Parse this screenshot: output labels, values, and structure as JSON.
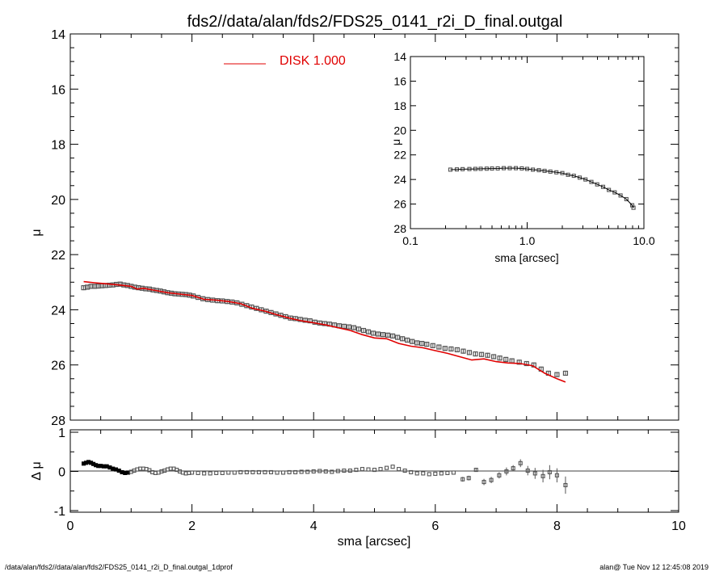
{
  "title": "fds2//data/alan/fds2/FDS25_0141_r2i_D_final.outgal",
  "footer": {
    "left": "/data/alan/fds2//data/alan/fds2/FDS25_0141_r2i_D_final.outgal_1dprof",
    "right": "alan@  Tue Nov 12 12:45:08 2019"
  },
  "colors": {
    "model": "#e00000",
    "data": "#555555",
    "axis": "#000000"
  },
  "chart_data": [
    {
      "id": "main",
      "type": "scatter",
      "ylabel": "μ",
      "xlim": [
        0,
        10
      ],
      "ylim": [
        28,
        14
      ],
      "yticks": [
        "14",
        "16",
        "18",
        "20",
        "22",
        "24",
        "26",
        "28"
      ],
      "legend": {
        "label": "DISK  1.000",
        "position": "top-center"
      },
      "series": [
        {
          "name": "data",
          "x": [
            0.22,
            0.28,
            0.34,
            0.4,
            0.46,
            0.52,
            0.58,
            0.64,
            0.7,
            0.76,
            0.82,
            0.88,
            0.94,
            1.0,
            1.06,
            1.12,
            1.18,
            1.24,
            1.3,
            1.36,
            1.42,
            1.48,
            1.54,
            1.6,
            1.66,
            1.72,
            1.78,
            1.84,
            1.9,
            1.96,
            2.02,
            2.1,
            2.18,
            2.26,
            2.34,
            2.42,
            2.5,
            2.58,
            2.66,
            2.74,
            2.82,
            2.9,
            2.98,
            3.06,
            3.14,
            3.22,
            3.3,
            3.38,
            3.46,
            3.54,
            3.62,
            3.7,
            3.78,
            3.86,
            3.94,
            4.02,
            4.1,
            4.18,
            4.26,
            4.34,
            4.42,
            4.5,
            4.58,
            4.66,
            4.74,
            4.82,
            4.9,
            4.98,
            5.06,
            5.14,
            5.22,
            5.3,
            5.38,
            5.46,
            5.54,
            5.62,
            5.7,
            5.78,
            5.86,
            5.96,
            6.06,
            6.16,
            6.26,
            6.36,
            6.46,
            6.56,
            6.66,
            6.76,
            6.86,
            6.96,
            7.06,
            7.16,
            7.26,
            7.38,
            7.5,
            7.62,
            7.74,
            7.86,
            8.0,
            8.14
          ],
          "y": [
            23.2,
            23.18,
            23.15,
            23.15,
            23.14,
            23.13,
            23.12,
            23.11,
            23.1,
            23.08,
            23.07,
            23.1,
            23.12,
            23.15,
            23.18,
            23.2,
            23.22,
            23.24,
            23.25,
            23.28,
            23.3,
            23.32,
            23.35,
            23.38,
            23.4,
            23.42,
            23.43,
            23.44,
            23.45,
            23.47,
            23.5,
            23.55,
            23.6,
            23.63,
            23.65,
            23.67,
            23.68,
            23.7,
            23.72,
            23.75,
            23.8,
            23.85,
            23.9,
            23.95,
            24.0,
            24.05,
            24.1,
            24.15,
            24.2,
            24.25,
            24.3,
            24.32,
            24.35,
            24.38,
            24.4,
            24.45,
            24.48,
            24.5,
            24.52,
            24.55,
            24.58,
            24.6,
            24.62,
            24.65,
            24.7,
            24.75,
            24.8,
            24.85,
            24.88,
            24.9,
            24.92,
            24.95,
            25.0,
            25.05,
            25.1,
            25.15,
            25.2,
            25.22,
            25.25,
            25.3,
            25.35,
            25.4,
            25.42,
            25.45,
            25.5,
            25.55,
            25.6,
            25.62,
            25.65,
            25.7,
            25.75,
            25.8,
            25.85,
            25.9,
            25.95,
            26.0,
            26.15,
            26.3,
            26.35,
            26.3
          ],
          "yerr": [
            0.03,
            0.03,
            0.03,
            0.03,
            0.03,
            0.03,
            0.03,
            0.03,
            0.03,
            0.03,
            0.03,
            0.03,
            0.03,
            0.03,
            0.03,
            0.03,
            0.03,
            0.03,
            0.03,
            0.03,
            0.03,
            0.03,
            0.03,
            0.03,
            0.03,
            0.03,
            0.03,
            0.03,
            0.03,
            0.03,
            0.03,
            0.03,
            0.03,
            0.03,
            0.03,
            0.03,
            0.03,
            0.03,
            0.03,
            0.03,
            0.03,
            0.03,
            0.03,
            0.03,
            0.03,
            0.03,
            0.03,
            0.03,
            0.03,
            0.03,
            0.03,
            0.03,
            0.03,
            0.03,
            0.03,
            0.03,
            0.03,
            0.03,
            0.03,
            0.03,
            0.03,
            0.03,
            0.03,
            0.03,
            0.03,
            0.03,
            0.03,
            0.03,
            0.03,
            0.03,
            0.03,
            0.03,
            0.03,
            0.03,
            0.03,
            0.03,
            0.03,
            0.03,
            0.03,
            0.03,
            0.03,
            0.03,
            0.03,
            0.03,
            0.03,
            0.03,
            0.03,
            0.03,
            0.03,
            0.03,
            0.03,
            0.03,
            0.03,
            0.03,
            0.03,
            0.03,
            0.03,
            0.03,
            0.03,
            0.03
          ]
        },
        {
          "name": "DISK  1.000",
          "x": [
            0.22,
            0.4,
            0.6,
            0.8,
            1.0,
            1.1,
            1.2,
            1.4,
            1.6,
            1.8,
            2.0,
            2.2,
            2.4,
            2.6,
            2.8,
            3.0,
            3.2,
            3.4,
            3.6,
            3.8,
            4.0,
            4.2,
            4.4,
            4.6,
            4.8,
            5.0,
            5.2,
            5.4,
            5.6,
            5.8,
            6.0,
            6.2,
            6.4,
            6.6,
            6.8,
            7.0,
            7.2,
            7.4,
            7.6,
            7.8,
            8.0,
            8.14
          ],
          "y": [
            22.98,
            23.02,
            23.06,
            23.1,
            23.15,
            23.25,
            23.22,
            23.3,
            23.38,
            23.43,
            23.48,
            23.62,
            23.65,
            23.7,
            23.78,
            23.95,
            24.05,
            24.18,
            24.3,
            24.4,
            24.47,
            24.55,
            24.65,
            24.75,
            24.9,
            25.02,
            25.05,
            25.22,
            25.32,
            25.38,
            25.48,
            25.58,
            25.7,
            25.82,
            25.78,
            25.88,
            25.93,
            25.95,
            26.03,
            26.3,
            26.5,
            26.62
          ]
        }
      ]
    },
    {
      "id": "inset",
      "type": "scatter",
      "xlabel": "sma [arcsec]",
      "ylabel": "μ",
      "xscale": "log",
      "xlim": [
        0.1,
        10
      ],
      "xticks": [
        "0.1",
        "1.0",
        "10.0"
      ],
      "ylim": [
        28,
        14
      ],
      "yticks": [
        "14",
        "16",
        "18",
        "20",
        "22",
        "24",
        "26",
        "28"
      ],
      "series": [
        {
          "name": "data",
          "x": [
            0.22,
            0.25,
            0.28,
            0.32,
            0.36,
            0.4,
            0.45,
            0.5,
            0.56,
            0.63,
            0.71,
            0.8,
            0.9,
            1.0,
            1.12,
            1.26,
            1.41,
            1.58,
            1.78,
            2.0,
            2.24,
            2.51,
            2.82,
            3.16,
            3.55,
            3.98,
            4.47,
            5.01,
            5.62,
            6.31,
            7.08,
            7.94,
            8.14
          ],
          "y": [
            23.2,
            23.18,
            23.16,
            23.15,
            23.14,
            23.13,
            23.12,
            23.11,
            23.1,
            23.08,
            23.08,
            23.08,
            23.1,
            23.14,
            23.2,
            23.24,
            23.3,
            23.36,
            23.42,
            23.48,
            23.62,
            23.7,
            23.85,
            24.0,
            24.2,
            24.4,
            24.6,
            24.85,
            25.05,
            25.3,
            25.6,
            26.1,
            26.3
          ]
        }
      ]
    },
    {
      "id": "residual",
      "type": "scatter",
      "xlabel": "sma [arcsec]",
      "ylabel": "Δ μ",
      "xlim": [
        0,
        10
      ],
      "xticks": [
        "0",
        "2",
        "4",
        "6",
        "8",
        "10"
      ],
      "ylim": [
        -1,
        1
      ],
      "yticks": [
        "1",
        "0",
        "-1"
      ],
      "series": [
        {
          "name": "residual",
          "x": [
            0.22,
            0.26,
            0.3,
            0.34,
            0.38,
            0.42,
            0.46,
            0.5,
            0.55,
            0.6,
            0.65,
            0.7,
            0.75,
            0.8,
            0.85,
            0.9,
            0.95,
            1.0,
            1.05,
            1.1,
            1.15,
            1.2,
            1.25,
            1.3,
            1.35,
            1.4,
            1.45,
            1.5,
            1.55,
            1.6,
            1.65,
            1.7,
            1.75,
            1.8,
            1.85,
            1.9,
            1.95,
            2.0,
            2.1,
            2.2,
            2.3,
            2.4,
            2.5,
            2.6,
            2.7,
            2.8,
            2.9,
            3.0,
            3.1,
            3.2,
            3.3,
            3.4,
            3.5,
            3.6,
            3.7,
            3.8,
            3.9,
            4.0,
            4.1,
            4.2,
            4.3,
            4.4,
            4.5,
            4.6,
            4.7,
            4.8,
            4.9,
            5.0,
            5.1,
            5.2,
            5.3,
            5.4,
            5.5,
            5.6,
            5.7,
            5.8,
            5.9,
            6.0,
            6.1,
            6.2,
            6.3,
            6.45,
            6.55,
            6.67,
            6.8,
            6.92,
            7.05,
            7.17,
            7.28,
            7.4,
            7.52,
            7.64,
            7.77,
            7.88,
            8.0,
            8.14
          ],
          "y": [
            0.2,
            0.22,
            0.24,
            0.22,
            0.19,
            0.16,
            0.14,
            0.14,
            0.13,
            0.13,
            0.1,
            0.07,
            0.05,
            0.02,
            -0.02,
            -0.04,
            -0.03,
            -0.01,
            0.02,
            0.05,
            0.07,
            0.07,
            0.06,
            0.03,
            -0.02,
            -0.04,
            -0.03,
            0.0,
            0.02,
            0.05,
            0.07,
            0.07,
            0.04,
            0.0,
            -0.03,
            -0.05,
            -0.04,
            -0.03,
            -0.04,
            -0.05,
            -0.05,
            -0.04,
            -0.04,
            -0.03,
            -0.03,
            -0.02,
            -0.02,
            -0.02,
            -0.02,
            -0.02,
            -0.02,
            -0.03,
            -0.03,
            -0.02,
            -0.02,
            -0.01,
            -0.01,
            0.0,
            0.01,
            0.0,
            -0.01,
            0.01,
            0.02,
            0.02,
            0.04,
            0.06,
            0.05,
            0.04,
            0.06,
            0.09,
            0.12,
            0.06,
            0.02,
            -0.02,
            -0.05,
            -0.05,
            -0.07,
            -0.06,
            -0.05,
            -0.04,
            -0.03,
            -0.2,
            -0.17,
            0.04,
            -0.27,
            -0.22,
            -0.1,
            0.0,
            0.08,
            0.21,
            0.02,
            -0.05,
            -0.12,
            -0.02,
            -0.1,
            -0.35
          ],
          "yerr": [
            0.02,
            0.02,
            0.02,
            0.02,
            0.02,
            0.02,
            0.02,
            0.02,
            0.02,
            0.02,
            0.02,
            0.02,
            0.02,
            0.02,
            0.02,
            0.02,
            0.02,
            0.02,
            0.02,
            0.02,
            0.02,
            0.02,
            0.02,
            0.02,
            0.02,
            0.02,
            0.02,
            0.02,
            0.02,
            0.02,
            0.02,
            0.02,
            0.02,
            0.02,
            0.02,
            0.02,
            0.02,
            0.02,
            0.02,
            0.02,
            0.02,
            0.02,
            0.02,
            0.02,
            0.02,
            0.02,
            0.02,
            0.02,
            0.02,
            0.02,
            0.02,
            0.02,
            0.02,
            0.02,
            0.02,
            0.02,
            0.02,
            0.02,
            0.02,
            0.02,
            0.02,
            0.02,
            0.02,
            0.02,
            0.02,
            0.02,
            0.02,
            0.02,
            0.02,
            0.02,
            0.02,
            0.02,
            0.02,
            0.02,
            0.02,
            0.02,
            0.02,
            0.02,
            0.02,
            0.02,
            0.02,
            0.06,
            0.06,
            0.05,
            0.08,
            0.08,
            0.08,
            0.1,
            0.08,
            0.1,
            0.12,
            0.14,
            0.16,
            0.18,
            0.18,
            0.22
          ]
        }
      ]
    }
  ]
}
